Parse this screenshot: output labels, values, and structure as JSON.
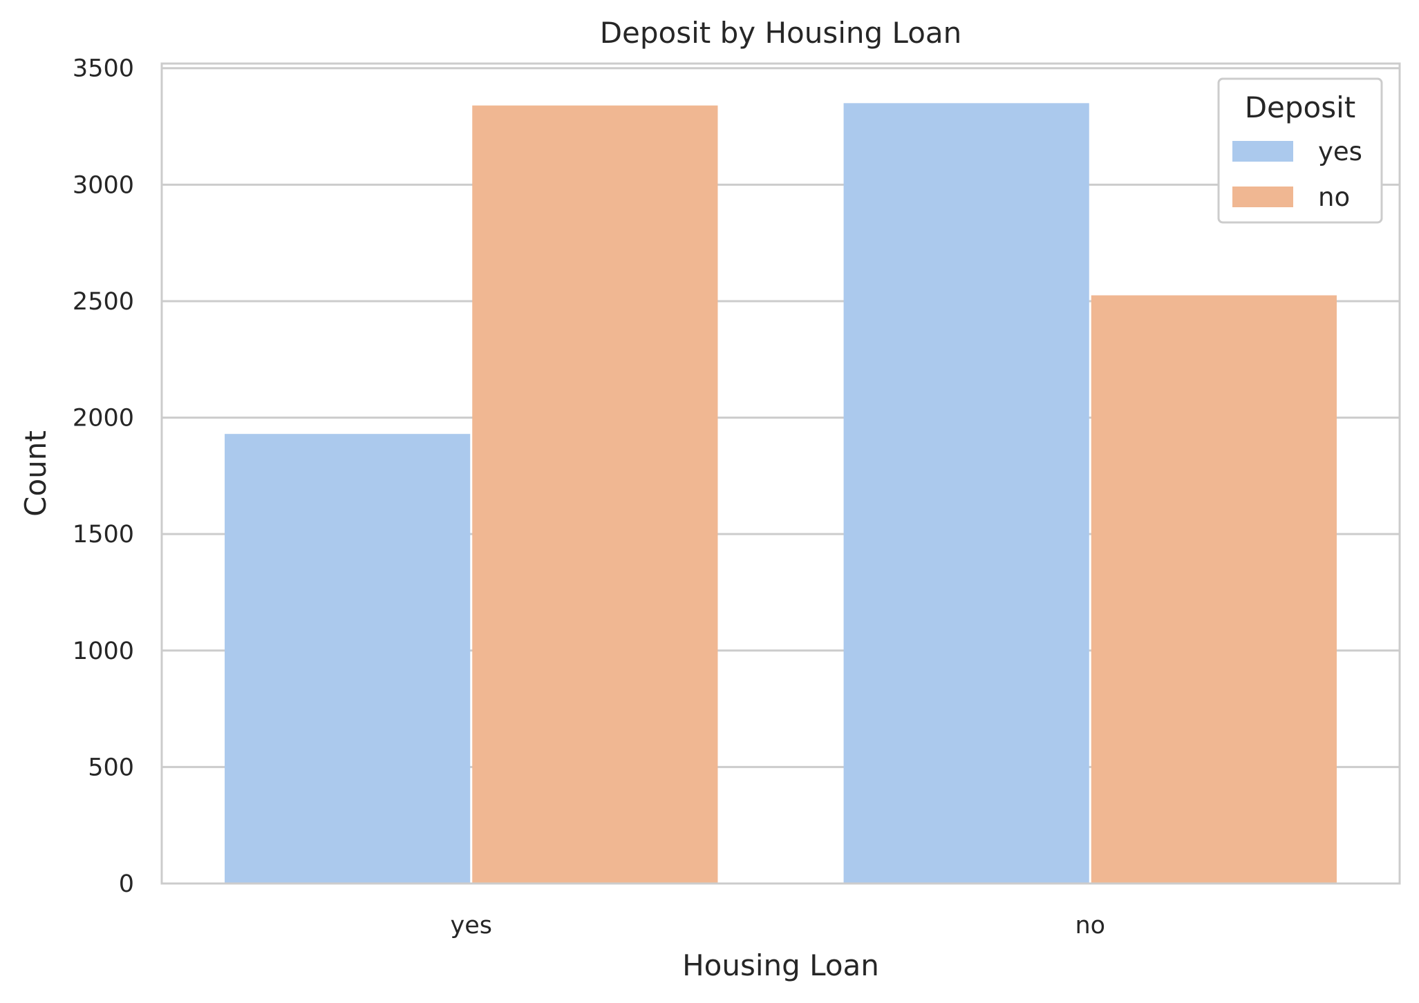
{
  "chart_data": {
    "type": "bar",
    "title": "Deposit by Housing Loan",
    "xlabel": "Housing Loan",
    "ylabel": "Count",
    "categories": [
      "yes",
      "no"
    ],
    "series": [
      {
        "name": "yes",
        "color": "#abc9ed",
        "values": [
          1930,
          3350
        ]
      },
      {
        "name": "no",
        "color": "#f0b792",
        "values": [
          3340,
          2525
        ]
      }
    ],
    "ylim": [
      0,
      3520
    ],
    "yticks": [
      0,
      500,
      1000,
      1500,
      2000,
      2500,
      3000,
      3500
    ],
    "grid": true,
    "legend": {
      "title": "Deposit",
      "position": "top-right"
    }
  }
}
